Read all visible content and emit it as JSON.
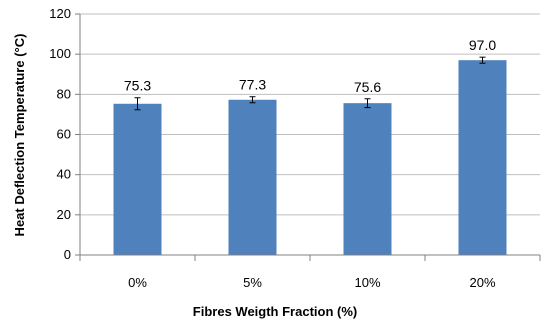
{
  "chart_data": {
    "type": "bar",
    "title": "",
    "xlabel": "Fibres Weigth Fraction (%)",
    "ylabel": "Heat Deflection Temperature (°C)",
    "categories": [
      "0%",
      "5%",
      "10%",
      "20%"
    ],
    "values": [
      75.3,
      77.3,
      75.6,
      97.0
    ],
    "data_labels": [
      "75.3",
      "77.3",
      "75.6",
      "97.0"
    ],
    "error": [
      3.0,
      1.5,
      2.2,
      1.5
    ],
    "ylim": [
      0,
      120
    ],
    "yticks": [
      0,
      20,
      40,
      60,
      80,
      100,
      120
    ],
    "ytick_labels": [
      "0",
      "20",
      "40",
      "60",
      "80",
      "100",
      "120"
    ],
    "grid": true,
    "legend": "none",
    "bar_color": "#4f81bd",
    "grid_color": "#bfbfbf"
  }
}
